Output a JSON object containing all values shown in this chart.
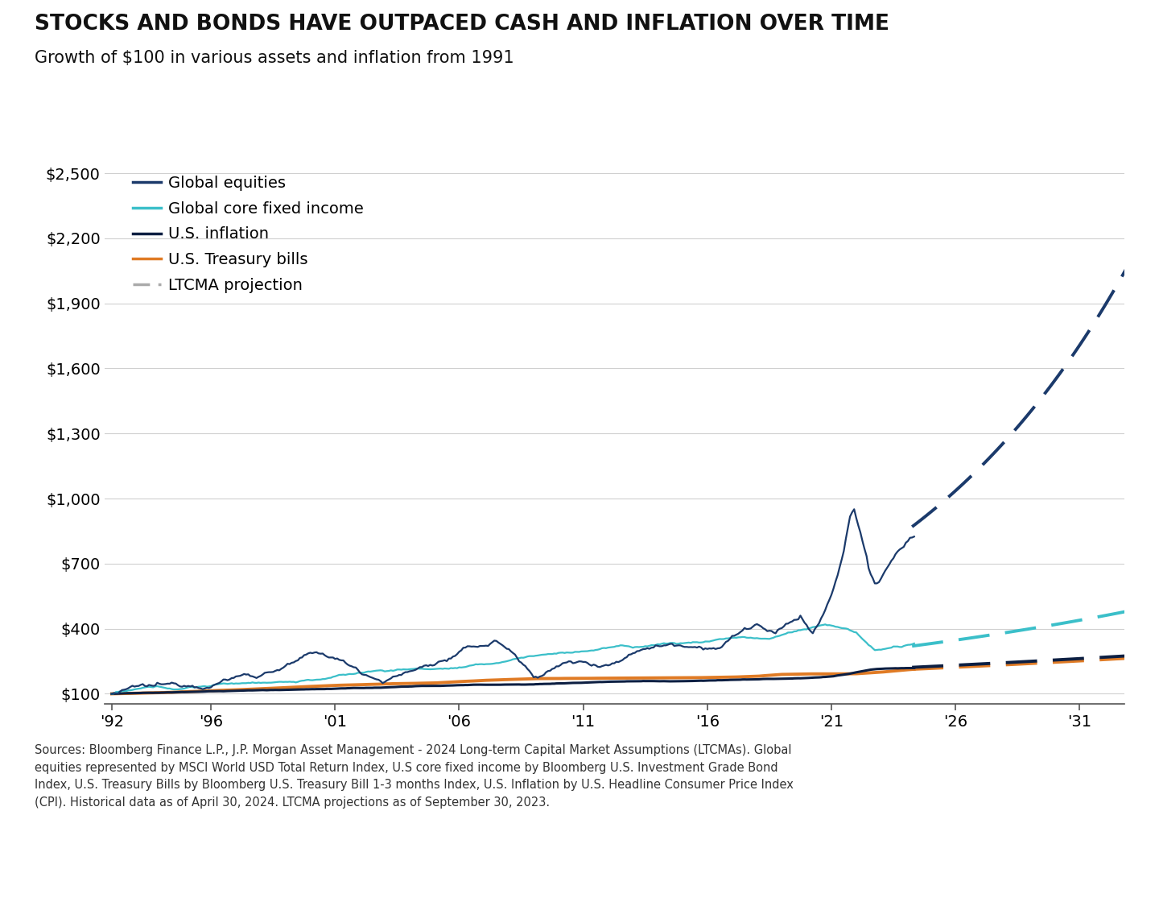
{
  "title": "STOCKS AND BONDS HAVE OUTPACED CASH AND INFLATION OVER TIME",
  "subtitle": "Growth of $100 in various assets and inflation from 1991",
  "footnote": "Sources: Bloomberg Finance L.P., J.P. Morgan Asset Management - 2024 Long-term Capital Market Assumptions (LTCMAs). Global\nequities represented by MSCI World USD Total Return Index, U.S core fixed income by Bloomberg U.S. Investment Grade Bond\nIndex, U.S. Treasury Bills by Bloomberg U.S. Treasury Bill 1-3 months Index, U.S. Inflation by U.S. Headline Consumer Price Index\n(CPI). Historical data as of April 30, 2024. LTCMA projections as of September 30, 2023.",
  "xlim": [
    1991.7,
    2032.8
  ],
  "ylim": [
    55,
    2550
  ],
  "yticks": [
    100,
    400,
    700,
    1000,
    1300,
    1600,
    1900,
    2200,
    2500
  ],
  "ytick_labels": [
    "$100",
    "$400",
    "$700",
    "$1,000",
    "$1,300",
    "$1,600",
    "$1,900",
    "$2,200",
    "$2,500"
  ],
  "xticks": [
    1992,
    1996,
    2001,
    2006,
    2011,
    2016,
    2021,
    2026,
    2031
  ],
  "xtick_labels": [
    "'92",
    "'96",
    "'01",
    "'06",
    "'11",
    "'16",
    "'21",
    "'26",
    "'31"
  ],
  "title_color": "#111111",
  "subtitle_color": "#111111",
  "background_color": "#ffffff",
  "global_equities_color": "#1b3a6b",
  "global_fixed_color": "#3bbfc9",
  "us_inflation_color": "#0d1f42",
  "us_tbills_color": "#e07b25",
  "ltcma_color": "#aaaaaa",
  "legend_labels": [
    "Global equities",
    "Global core fixed income",
    "U.S. inflation",
    "U.S. Treasury bills",
    "LTCMA projection"
  ]
}
